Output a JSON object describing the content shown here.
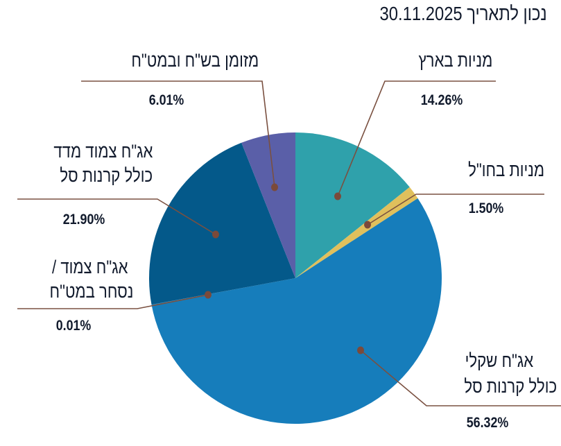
{
  "chart_data": {
    "type": "pie",
    "title": "נכון לתאריך 30.11.2025",
    "start_angle": "12 o'clock, clockwise",
    "slices": [
      {
        "label_lines": [
          "מניות בארץ"
        ],
        "value": 14.26,
        "value_label": "14.26%",
        "color": "#2fa1ab"
      },
      {
        "label_lines": [
          "מניות בחו\"ל"
        ],
        "value": 1.5,
        "value_label": "1.50%",
        "color": "#e0c05c"
      },
      {
        "label_lines": [
          "אג\"ח שקלי",
          "כולל קרנות סל"
        ],
        "value": 56.32,
        "value_label": "56.32%",
        "color": "#167dbb"
      },
      {
        "label_lines": [
          "אג\"ח צמוד /",
          "נסחר במט\"ח"
        ],
        "value": 0.01,
        "value_label": "0.01%",
        "color": "#0b6c9f"
      },
      {
        "label_lines": [
          "אג\"ח צמוד מדד",
          "כולל קרנות סל"
        ],
        "value": 21.9,
        "value_label": "21.90%",
        "color": "#04598a"
      },
      {
        "label_lines": [
          "מזומן בש\"ח ובמט\"ח"
        ],
        "value": 6.01,
        "value_label": "6.01%",
        "color": "#5a5fa8"
      }
    ],
    "leader_color": "#7a5040"
  }
}
